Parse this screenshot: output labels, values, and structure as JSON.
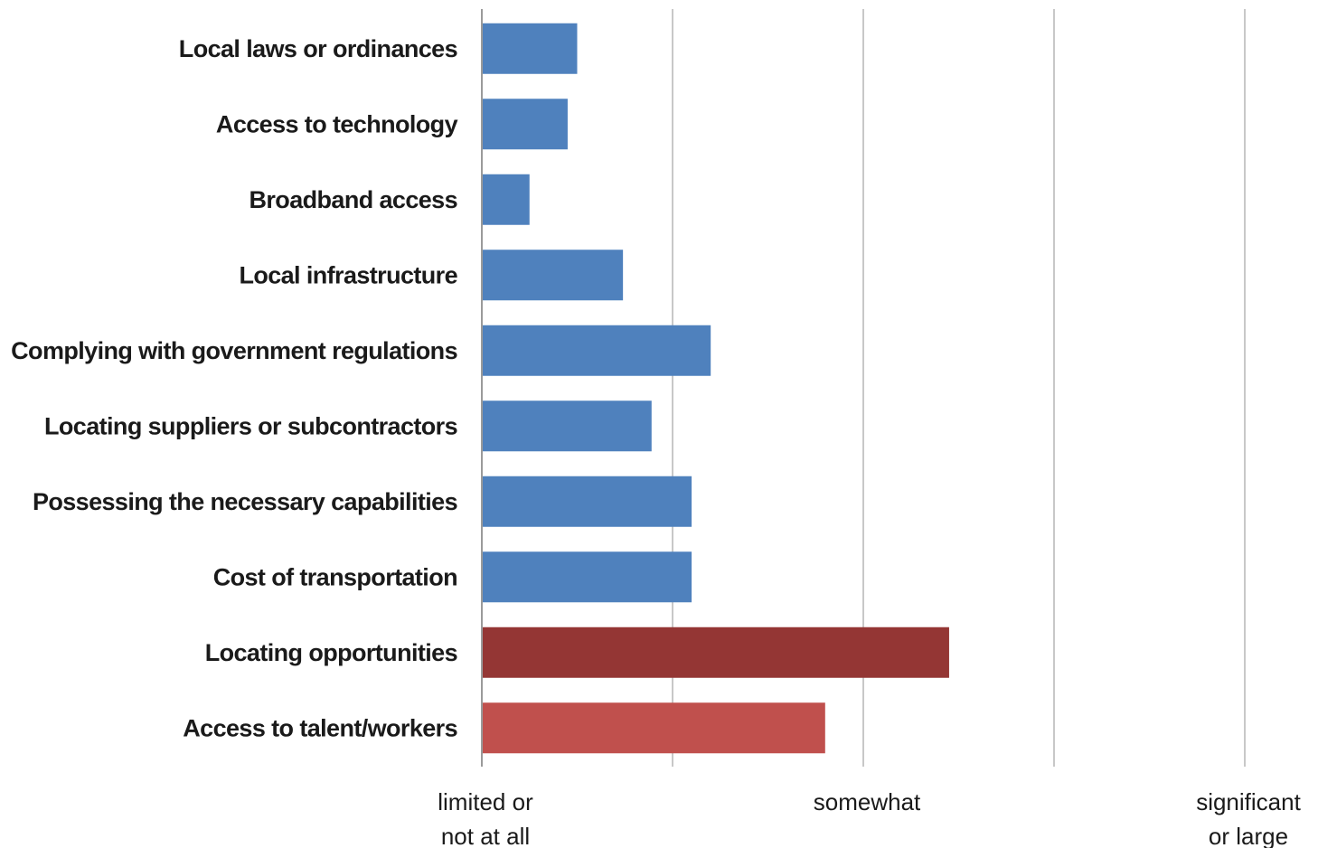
{
  "chart_data": {
    "type": "bar",
    "orientation": "horizontal",
    "categories": [
      "Local laws or ordinances",
      "Access to technology",
      "Broadband access",
      "Local infrastructure",
      "Complying with government regulations",
      "Locating suppliers or subcontractors",
      "Possessing the necessary capabilities",
      "Cost of transportation",
      "Locating opportunities",
      "Access to talent/workers"
    ],
    "values": [
      0.25,
      0.225,
      0.125,
      0.37,
      0.6,
      0.445,
      0.55,
      0.55,
      1.225,
      0.9
    ],
    "bar_colors": [
      "#4f81bd",
      "#4f81bd",
      "#4f81bd",
      "#4f81bd",
      "#4f81bd",
      "#4f81bd",
      "#4f81bd",
      "#4f81bd",
      "#943634",
      "#c0504d"
    ],
    "xlim": [
      0,
      2
    ],
    "gridlines": [
      0.5,
      1,
      1.5,
      2
    ],
    "grid": true,
    "legend": "none",
    "x_tick_labels": [
      {
        "value": 0,
        "lines": [
          "limited or",
          "not at all"
        ]
      },
      {
        "value": 1,
        "lines": [
          "somewhat"
        ]
      },
      {
        "value": 2,
        "lines": [
          "significant",
          "or large"
        ]
      }
    ],
    "title": "",
    "xlabel": "",
    "ylabel": ""
  }
}
